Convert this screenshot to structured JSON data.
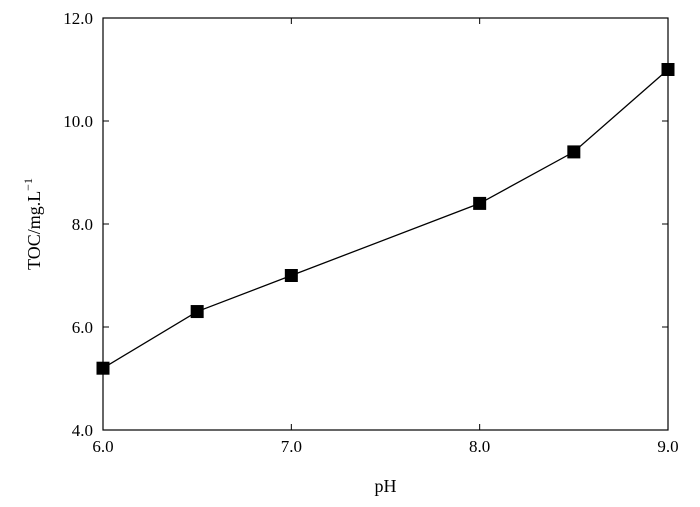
{
  "chart_data": {
    "type": "line",
    "xlabel": "pH",
    "ylabel_main": "TOC/mg.L",
    "ylabel_sup": "−1",
    "xlim": [
      6.0,
      9.0
    ],
    "ylim": [
      4.0,
      12.0
    ],
    "x_ticks": [
      6.0,
      7.0,
      8.0,
      9.0
    ],
    "x_tick_labels": [
      "6.0",
      "7.0",
      "8.0",
      "9.0"
    ],
    "y_ticks": [
      4.0,
      6.0,
      8.0,
      10.0,
      12.0
    ],
    "y_tick_labels": [
      "4.0",
      "6.0",
      "8.0",
      "10.0",
      "12.0"
    ],
    "grid": false,
    "marker": "square",
    "series": [
      {
        "x": [
          6.0,
          6.5,
          7.0,
          8.0,
          8.5,
          9.0
        ],
        "y": [
          5.2,
          6.3,
          7.0,
          8.4,
          9.4,
          11.0
        ]
      }
    ]
  }
}
